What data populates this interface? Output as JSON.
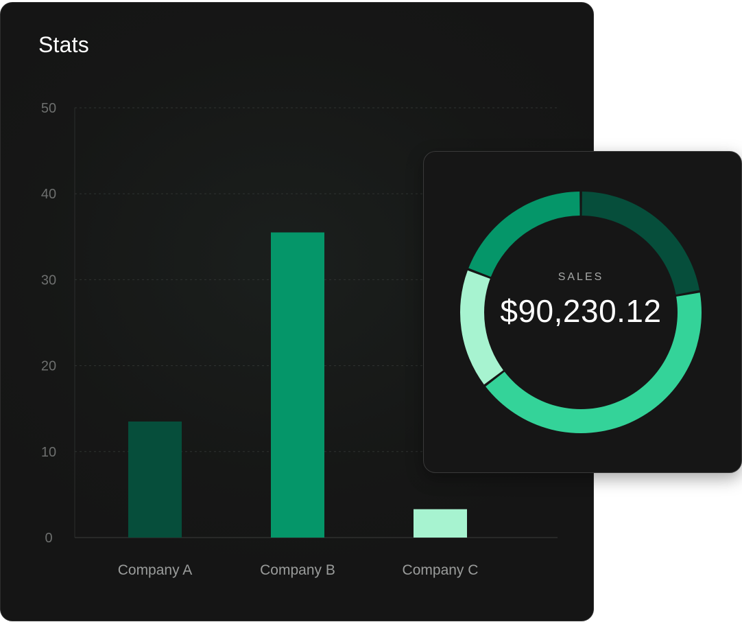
{
  "stats": {
    "title": "Stats"
  },
  "sales": {
    "label": "SALES",
    "value": "$90,230.12"
  },
  "chart_data": [
    {
      "type": "bar",
      "title": "Stats",
      "categories": [
        "Company A",
        "Company B",
        "Company C"
      ],
      "values": [
        13.5,
        35.5,
        3.3
      ],
      "colors": [
        "#064e3b",
        "#059669",
        "#a7f3d0"
      ],
      "ylim": [
        0,
        50
      ],
      "yticks": [
        0,
        10,
        20,
        30,
        40,
        50
      ],
      "xlabel": "",
      "ylabel": "",
      "grid": true,
      "legend": "none"
    },
    {
      "type": "pie",
      "title": "",
      "variant": "donut",
      "values": [
        22,
        42,
        16,
        19
      ],
      "colors": [
        "#064e3b",
        "#34d399",
        "#a7f3d0",
        "#059669"
      ],
      "legend": "none"
    }
  ]
}
